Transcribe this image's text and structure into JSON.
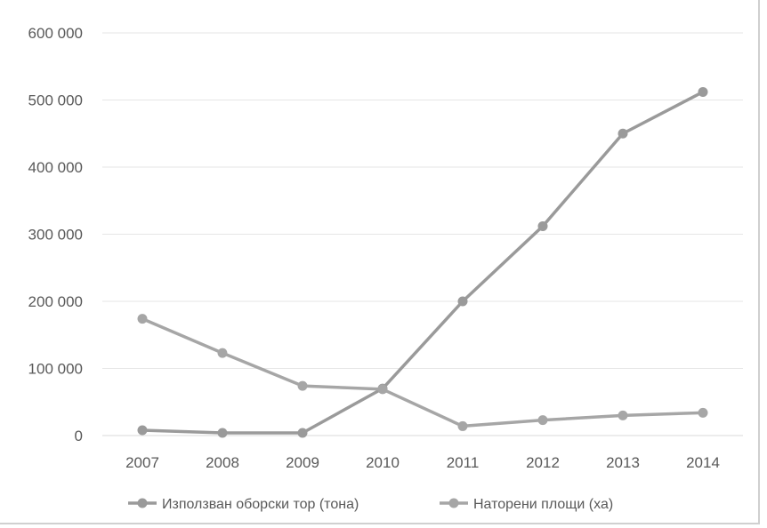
{
  "chart_data": {
    "type": "line",
    "x": [
      "2007",
      "2008",
      "2009",
      "2010",
      "2011",
      "2012",
      "2013",
      "2014"
    ],
    "series": [
      {
        "name": "Използван оборски тор (тона)",
        "values": [
          8000,
          4000,
          4000,
          70000,
          200000,
          312000,
          450000,
          512000
        ],
        "color": "#9a9a9a"
      },
      {
        "name": "Наторени площи (ха)",
        "values": [
          174000,
          123000,
          74000,
          69000,
          14000,
          23000,
          30000,
          34000
        ],
        "color": "#a6a6a6"
      }
    ],
    "ylim": [
      0,
      600000
    ],
    "yticks": [
      0,
      100000,
      200000,
      300000,
      400000,
      500000,
      600000
    ],
    "ytick_labels": [
      "0",
      "100 000",
      "200 000",
      "300 000",
      "400 000",
      "500 000",
      "600 000"
    ],
    "grid": true,
    "legend_position": "bottom",
    "title": "",
    "xlabel": "",
    "ylabel": ""
  }
}
